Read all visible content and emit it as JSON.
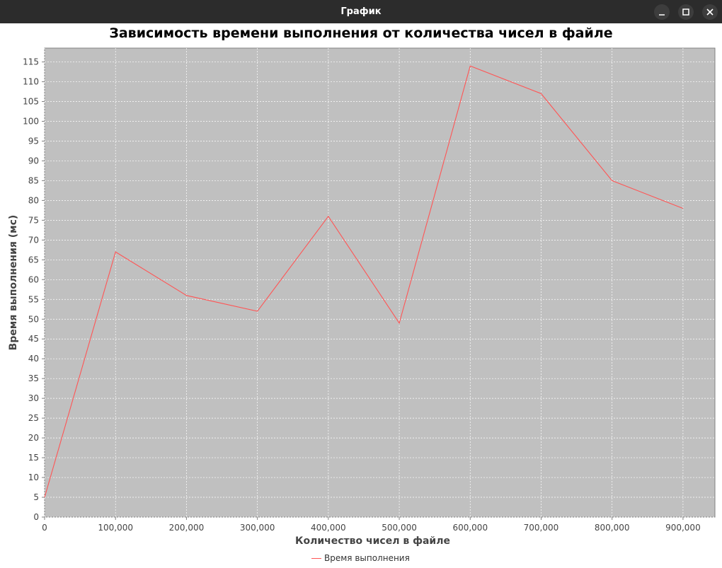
{
  "window": {
    "title": "График",
    "buttons": [
      "minimize",
      "maximize",
      "close"
    ]
  },
  "chart_data": {
    "type": "line",
    "title": "Зависимость времени выполнения от количества чисел в файле",
    "xlabel": "Количество чисел в файле",
    "ylabel": "Время выполнения (мс)",
    "x": [
      0,
      100000,
      200000,
      300000,
      400000,
      500000,
      600000,
      700000,
      800000,
      900000
    ],
    "series": [
      {
        "name": "Время выполнения",
        "color": "#ff5555",
        "values": [
          5,
          67,
          56,
          52,
          76,
          49,
          114,
          107,
          85,
          78
        ]
      }
    ],
    "xlim": [
      0,
      945000
    ],
    "ylim": [
      0,
      118.5
    ],
    "xticks": [
      0,
      100000,
      200000,
      300000,
      400000,
      500000,
      600000,
      700000,
      800000,
      900000
    ],
    "xtick_labels": [
      "0",
      "100,000",
      "200,000",
      "300,000",
      "400,000",
      "500,000",
      "600,000",
      "700,000",
      "800,000",
      "900,000"
    ],
    "yticks": [
      0,
      5,
      10,
      15,
      20,
      25,
      30,
      35,
      40,
      45,
      50,
      55,
      60,
      65,
      70,
      75,
      80,
      85,
      90,
      95,
      100,
      105,
      110,
      115
    ],
    "grid": true,
    "legend_position": "bottom-center",
    "plot_background": "#c0c0c0",
    "grid_color": "#ffffff"
  }
}
